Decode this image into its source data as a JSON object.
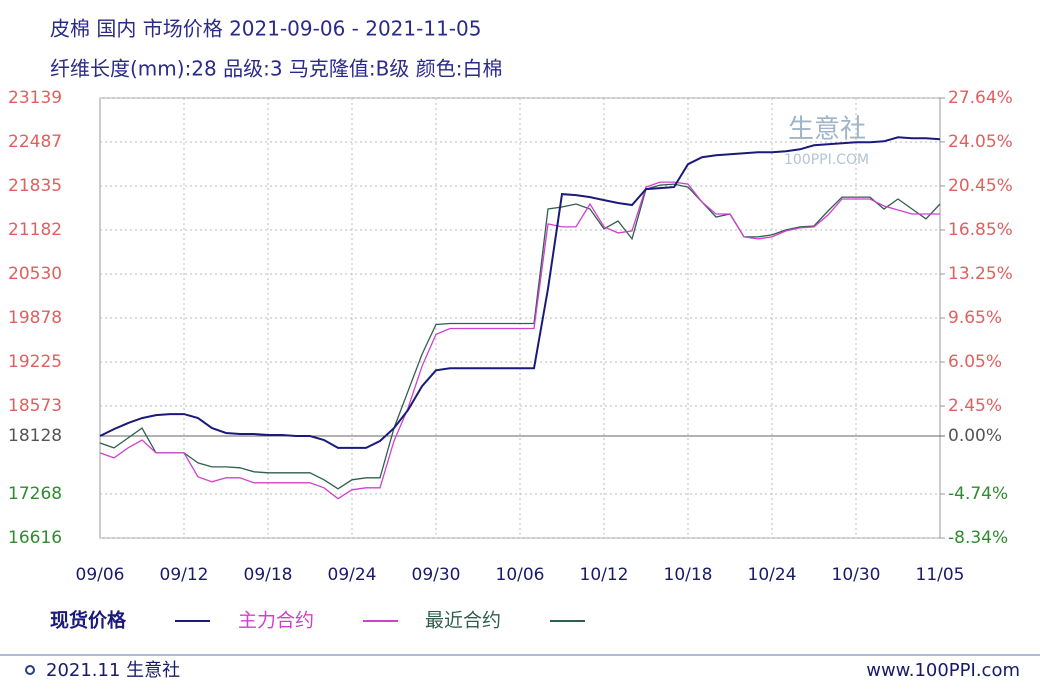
{
  "chart_data": {
    "type": "line",
    "title": "皮棉 国内 市场价格 2021-09-06 - 2021-11-05",
    "subtitle": "纤维长度(mm):28 品级:3 马克隆值:B级 颜色:白棉",
    "watermark": {
      "name": "生意社",
      "site": "100PPI.COM"
    },
    "categories": [
      "09/06",
      null,
      null,
      null,
      null,
      null,
      "09/12",
      null,
      null,
      null,
      null,
      null,
      "09/18",
      null,
      null,
      null,
      null,
      null,
      "09/24",
      null,
      null,
      null,
      null,
      null,
      "09/30",
      null,
      null,
      null,
      null,
      null,
      "10/06",
      null,
      null,
      null,
      null,
      null,
      "10/12",
      null,
      null,
      null,
      null,
      null,
      "10/18",
      null,
      null,
      null,
      null,
      null,
      "10/24",
      null,
      null,
      null,
      null,
      null,
      "10/30",
      null,
      null,
      null,
      null,
      null,
      "11/05"
    ],
    "series": [
      {
        "name": "现货价格",
        "color": "#1a1a7a",
        "values": [
          18128,
          18231,
          18320,
          18394,
          18438,
          18453,
          18453,
          18394,
          18246,
          18172,
          18158,
          18158,
          18143,
          18143,
          18128,
          18128,
          18069,
          17951,
          17951,
          17951,
          18054,
          18246,
          18512,
          18866,
          19102,
          19132,
          19132,
          19132,
          19132,
          19132,
          19132,
          19132,
          20312,
          21715,
          21700,
          21670,
          21626,
          21582,
          21552,
          21788,
          21803,
          21818,
          22157,
          22261,
          22290,
          22305,
          22320,
          22335,
          22335,
          22349,
          22379,
          22438,
          22453,
          22467,
          22482,
          22482,
          22497,
          22556,
          22541,
          22541,
          22527
        ]
      },
      {
        "name": "主力合约",
        "color": "#d040d0",
        "values": [
          17877,
          17803,
          17951,
          18069,
          17877,
          17877,
          17877,
          17523,
          17449,
          17508,
          17508,
          17434,
          17434,
          17434,
          17434,
          17434,
          17360,
          17198,
          17331,
          17360,
          17360,
          18054,
          18541,
          19161,
          19634,
          19722,
          19722,
          19722,
          19722,
          19722,
          19722,
          19722,
          21272,
          21228,
          21228,
          21567,
          21228,
          21139,
          21169,
          21818,
          21892,
          21892,
          21862,
          21597,
          21419,
          21419,
          21080,
          21050,
          21080,
          21169,
          21213,
          21228,
          21405,
          21641,
          21641,
          21641,
          21538,
          21479,
          21419,
          21419,
          21419
        ]
      },
      {
        "name": "最近合约",
        "color": "#2f5f4f",
        "values": [
          18025,
          17951,
          18098,
          18246,
          17877,
          17877,
          17877,
          17729,
          17670,
          17670,
          17656,
          17597,
          17582,
          17582,
          17582,
          17582,
          17479,
          17346,
          17479,
          17508,
          17508,
          18246,
          18792,
          19338,
          19781,
          19796,
          19796,
          19796,
          19796,
          19796,
          19796,
          19796,
          21493,
          21523,
          21567,
          21493,
          21198,
          21316,
          21050,
          21788,
          21848,
          21862,
          21818,
          21597,
          21375,
          21419,
          21080,
          21080,
          21110,
          21183,
          21228,
          21242,
          21464,
          21670,
          21670,
          21670,
          21493,
          21641,
          21493,
          21346,
          21567
        ]
      }
    ],
    "ylim": [
      16616,
      23139
    ],
    "yticks": [
      23139,
      22487,
      21835,
      21182,
      20530,
      19878,
      19225,
      18573,
      18128,
      17268,
      16616
    ],
    "y2lim": [
      -8.34,
      27.64
    ],
    "y2ticks": [
      {
        "value": 27.64,
        "label": "27.64%"
      },
      {
        "value": 24.05,
        "label": "24.05%"
      },
      {
        "value": 20.45,
        "label": "20.45%"
      },
      {
        "value": 16.85,
        "label": "16.85%"
      },
      {
        "value": 13.25,
        "label": "13.25%"
      },
      {
        "value": 9.65,
        "label": "9.65%"
      },
      {
        "value": 6.05,
        "label": "6.05%"
      },
      {
        "value": 2.45,
        "label": "2.45%"
      },
      {
        "value": 0,
        "label": "0.00%"
      },
      {
        "value": -4.74,
        "label": "-4.74%"
      },
      {
        "value": -8.34,
        "label": "-8.34%"
      }
    ],
    "tick_colors": {
      "positive": "#e06060",
      "zero": "#555555",
      "negative": "#2e8b2e"
    },
    "grid": true,
    "footer": {
      "left": "2021.11 生意社",
      "right": "www.100PPI.com"
    }
  }
}
